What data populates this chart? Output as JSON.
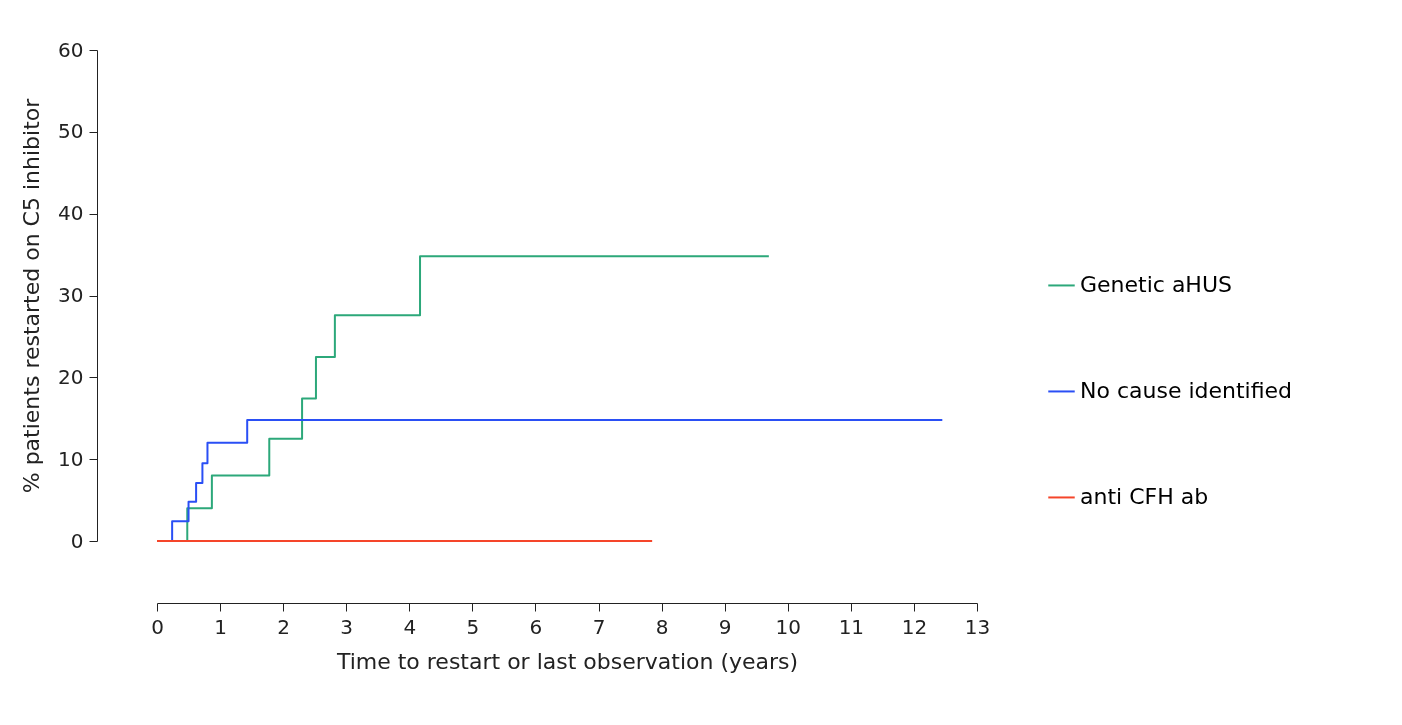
{
  "chart_data": {
    "type": "step",
    "xlabel": "Time to restart or last observation (years)",
    "ylabel": "% patients restarted on C5 inhibitor",
    "xlim": [
      0,
      13
    ],
    "xticks": [
      0,
      1,
      2,
      3,
      4,
      5,
      6,
      7,
      8,
      9,
      10,
      11,
      12,
      13
    ],
    "ylim": [
      0,
      60
    ],
    "yticks": [
      0,
      10,
      20,
      30,
      40,
      50,
      60
    ],
    "grid": false,
    "legend": "right",
    "marker": "none",
    "line_style": "solid",
    "series": [
      {
        "name": "Genetic aHUS",
        "color": "#2ca87a",
        "x": [
          0,
          0.48,
          0.87,
          1.78,
          2.3,
          2.52,
          2.82,
          4.17,
          9.7
        ],
        "values": [
          0,
          4,
          8,
          12.5,
          17.4,
          22.5,
          27.6,
          34.8,
          34.8
        ]
      },
      {
        "name": "No cause identified",
        "color": "#2a4ff5",
        "x": [
          0,
          0.24,
          0.5,
          0.62,
          0.72,
          0.8,
          1.43,
          12.45
        ],
        "values": [
          0,
          2.4,
          4.8,
          7.1,
          9.5,
          12,
          14.8,
          14.8
        ]
      },
      {
        "name": "anti CFH ab",
        "color": "#f5452a",
        "x": [
          0,
          7.85
        ],
        "values": [
          0,
          0
        ]
      }
    ]
  }
}
